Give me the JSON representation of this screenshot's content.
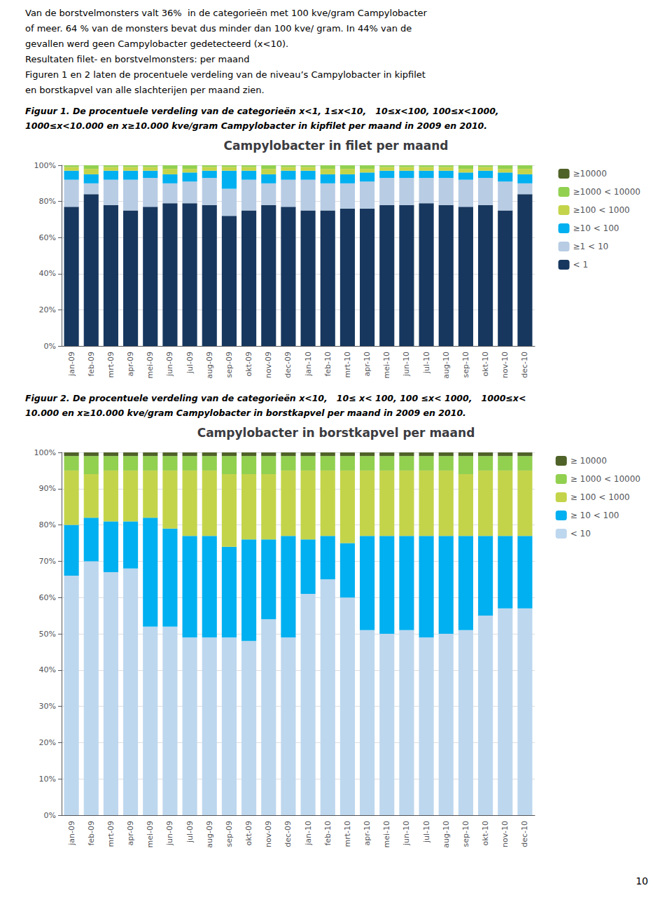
{
  "annotations": [
    "Van de borstvelmonsters valt 36%  in de categorieën met 100 kve/gram Campylobacter",
    "of meer. 64 % van de monsters bevat dus minder dan 100 kve/ gram. In 44% van de",
    "gevallen werd geen Campylobacter gedetecteerd (x<10).",
    "Resultaten filet- en borstvelmonsters: per maand",
    "Figuren 1 en 2 laten de procentuele verdeling van de niveau’s Campylobacter in kipfilet",
    "en borstkapvel van alle slachterijen per maand zien."
  ],
  "page_number": "10",
  "chart_data": [
    {
      "type": "bar",
      "stacked": true,
      "title": "Campylobacter in filet per maand",
      "annotations": [
        "Figuur 1. De procentuele verdeling van de categorieën x<1, 1≤x<10,   10≤x<100, 100≤x<1000,",
        "1000≤x<10.000 en x≥10.000 kve/gram Campylobacter in kipfilet per maand in 2009 en 2010."
      ],
      "categories": [
        "jan-09",
        "feb-09",
        "mrt-09",
        "apr-09",
        "mei-09",
        "jun-09",
        "jul-09",
        "aug-09",
        "sep-09",
        "okt-09",
        "nov-09",
        "dec-09",
        "jan-10",
        "feb-10",
        "mrt-10",
        "apr-10",
        "mei-10",
        "jun-10",
        "jul-10",
        "aug-10",
        "sep-10",
        "okt-10",
        "nov-10",
        "dec-10"
      ],
      "series": [
        {
          "name": "< 1",
          "color": "#17375E",
          "values": [
            77,
            84,
            78,
            75,
            77,
            79,
            79,
            78,
            72,
            75,
            78,
            77,
            75,
            75,
            76,
            76,
            78,
            78,
            79,
            78,
            77,
            78,
            75,
            84
          ]
        },
        {
          "name": "≥1 < 10",
          "color": "#B8CCE4",
          "values": [
            15,
            6,
            14,
            17,
            16,
            11,
            12,
            15,
            15,
            17,
            12,
            15,
            17,
            15,
            14,
            15,
            15,
            15,
            14,
            15,
            15,
            15,
            16,
            6
          ]
        },
        {
          "name": "≥10 < 100",
          "color": "#00B0F0",
          "values": [
            5,
            5,
            5,
            5,
            4,
            5,
            5,
            4,
            10,
            5,
            5,
            5,
            5,
            5,
            5,
            5,
            4,
            4,
            4,
            4,
            4,
            4,
            5,
            5
          ]
        },
        {
          "name": "≥100 < 1000",
          "color": "#C4D44A",
          "values": [
            2,
            3,
            2,
            2,
            2,
            3,
            2,
            2,
            2,
            2,
            3,
            2,
            2,
            3,
            3,
            2,
            2,
            2,
            2,
            2,
            2,
            2,
            2,
            3
          ]
        },
        {
          "name": "≥1000 < 10000",
          "color": "#92D050",
          "values": [
            1,
            2,
            1,
            1,
            1,
            2,
            2,
            1,
            1,
            1,
            2,
            1,
            1,
            2,
            2,
            2,
            1,
            1,
            1,
            1,
            2,
            1,
            2,
            2
          ]
        },
        {
          "name": "≥10000",
          "color": "#4F6228",
          "values": [
            0,
            0,
            0,
            0,
            0,
            0,
            0,
            0,
            0,
            0,
            0,
            0,
            0,
            0,
            0,
            0,
            0,
            0,
            0,
            0,
            0,
            0,
            0,
            0
          ]
        }
      ],
      "ylim": [
        0,
        100
      ],
      "yticks": [
        {
          "value": 0,
          "label": "0%"
        },
        {
          "value": 20,
          "label": "20%"
        },
        {
          "value": 40,
          "label": "40%"
        },
        {
          "value": 60,
          "label": "60%"
        },
        {
          "value": 80,
          "label": "80%"
        },
        {
          "value": 100,
          "label": "100%"
        }
      ],
      "grid": true,
      "legend": "right"
    },
    {
      "type": "bar",
      "stacked": true,
      "title": "Campylobacter in borstkapvel per maand",
      "annotations": [
        "Figuur 2. De procentuele verdeling van de categorieën x<10,   10≤ x< 100, 100 ≤x< 1000,   1000≤x<",
        "10.000 en x≥10.000 kve/gram Campylobacter in borstkapvel per maand in 2009 en 2010."
      ],
      "categories": [
        "jan-09",
        "feb-09",
        "mrt-09",
        "apr-09",
        "mei-09",
        "jun-09",
        "jul-09",
        "aug-09",
        "sep-09",
        "okt-09",
        "nov-09",
        "dec-09",
        "jan-10",
        "feb-10",
        "mrt-10",
        "apr-10",
        "mei-10",
        "jun-10",
        "jul-10",
        "aug-10",
        "sep-10",
        "okt-10",
        "nov-10",
        "dec-10"
      ],
      "series": [
        {
          "name": "< 10",
          "color": "#BDD7EE",
          "values": [
            66,
            70,
            67,
            68,
            52,
            52,
            49,
            49,
            49,
            48,
            54,
            49,
            61,
            65,
            60,
            51,
            50,
            51,
            49,
            50,
            51,
            55,
            57,
            57
          ]
        },
        {
          "name": "≥ 10 < 100",
          "color": "#00B0F0",
          "values": [
            14,
            12,
            14,
            13,
            30,
            27,
            28,
            28,
            25,
            28,
            22,
            28,
            15,
            12,
            15,
            26,
            27,
            26,
            28,
            27,
            26,
            22,
            20,
            20
          ]
        },
        {
          "name": "≥ 100 < 1000",
          "color": "#C4D44A",
          "values": [
            15,
            12,
            14,
            14,
            13,
            16,
            18,
            18,
            20,
            18,
            18,
            18,
            19,
            18,
            20,
            18,
            18,
            18,
            18,
            18,
            17,
            18,
            18,
            18
          ]
        },
        {
          "name": "≥ 1000 < 10000",
          "color": "#92D050",
          "values": [
            4,
            5,
            4,
            4,
            4,
            4,
            4,
            4,
            5,
            5,
            5,
            4,
            4,
            4,
            4,
            4,
            4,
            4,
            4,
            4,
            5,
            4,
            4,
            4
          ]
        },
        {
          "name": "≥ 10000",
          "color": "#4F6228",
          "values": [
            1,
            1,
            1,
            1,
            1,
            1,
            1,
            1,
            1,
            1,
            1,
            1,
            1,
            1,
            1,
            1,
            1,
            1,
            1,
            1,
            1,
            1,
            1,
            1
          ]
        }
      ],
      "ylim": [
        0,
        100
      ],
      "yticks": [
        {
          "value": 0,
          "label": "0%"
        },
        {
          "value": 10,
          "label": "10%"
        },
        {
          "value": 20,
          "label": "20%"
        },
        {
          "value": 30,
          "label": "30%"
        },
        {
          "value": 40,
          "label": "40%"
        },
        {
          "value": 50,
          "label": "50%"
        },
        {
          "value": 60,
          "label": "60%"
        },
        {
          "value": 70,
          "label": "70%"
        },
        {
          "value": 80,
          "label": "80%"
        },
        {
          "value": 90,
          "label": "90%"
        },
        {
          "value": 100,
          "label": "100%"
        }
      ],
      "grid": true,
      "legend": "right"
    }
  ]
}
